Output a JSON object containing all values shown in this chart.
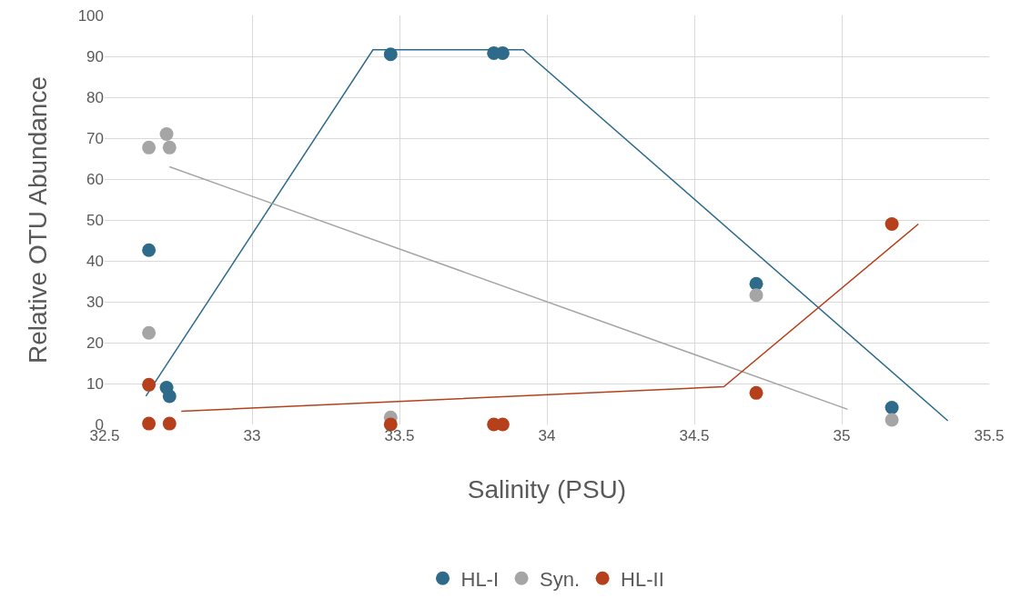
{
  "chart_data": {
    "type": "scatter",
    "xlabel": "Salinity (PSU)",
    "ylabel": "Relative OTU Abundance",
    "xlim": [
      32.5,
      35.5
    ],
    "xticks": [
      32.5,
      33,
      33.5,
      34,
      34.5,
      35,
      35.5
    ],
    "ylim": [
      0,
      100
    ],
    "yticks": [
      0,
      10,
      20,
      30,
      40,
      50,
      60,
      70,
      80,
      90,
      100
    ],
    "grid": true,
    "legend": "bottom",
    "marker": "circle",
    "series": [
      {
        "name": "HL-I",
        "color": "#2e6b8a",
        "x": [
          32.65,
          32.71,
          32.72,
          33.47,
          33.82,
          33.85,
          34.71,
          35.17
        ],
        "values": [
          42.6,
          9,
          6.9,
          90.5,
          90.8,
          90.8,
          34.4,
          4.1
        ]
      },
      {
        "name": "Syn.",
        "color": "#a5a5a5",
        "x": [
          32.65,
          32.71,
          32.72,
          32.65,
          33.47,
          34.71,
          35.17
        ],
        "values": [
          67.7,
          71,
          67.7,
          22.4,
          1.7,
          31.6,
          1.1
        ]
      },
      {
        "name": "HL-II",
        "color": "#b5401b",
        "x": [
          32.65,
          32.65,
          32.72,
          33.47,
          33.82,
          33.85,
          34.71,
          35.17
        ],
        "values": [
          9.7,
          0.2,
          0.2,
          0,
          0,
          0,
          7.7,
          49
        ]
      },
      {
        "type": "line",
        "marker": "none",
        "color": "#2e6b8a",
        "x": [
          32.64,
          33.41,
          33.92,
          35.36
        ],
        "values": [
          6.9,
          91.6,
          91.6,
          0.9
        ]
      },
      {
        "type": "line",
        "marker": "none",
        "color": "#a5a5a5",
        "x": [
          32.72,
          35.02
        ],
        "values": [
          63,
          3.7
        ]
      },
      {
        "type": "line",
        "marker": "none",
        "color": "#b5401b",
        "x": [
          32.76,
          34.6,
          35.26
        ],
        "values": [
          3.2,
          9.2,
          49
        ]
      }
    ]
  }
}
